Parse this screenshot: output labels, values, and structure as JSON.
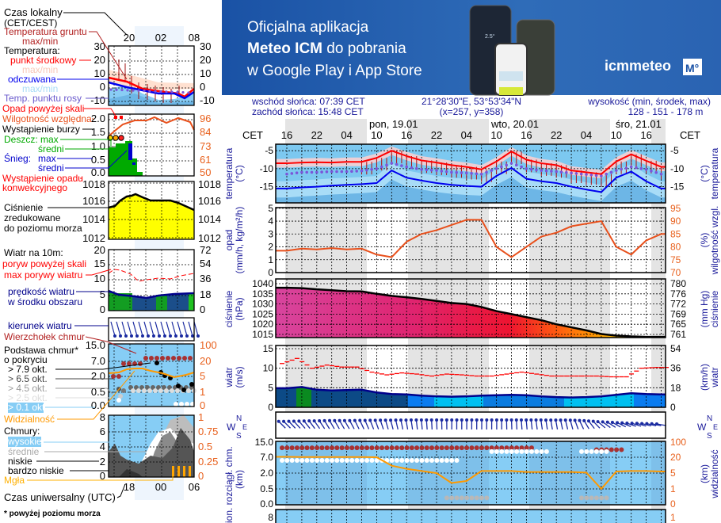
{
  "banner": {
    "line1": "Oficjalna aplikacja",
    "line2_bold": "Meteo ICM",
    "line2_rest": " do pobrania",
    "line3": "w Google Play i App Store",
    "logo_text": "icmmeteo",
    "logo_badge": "M°",
    "phone_temp": "2.5°",
    "background_color": "#1b55a8"
  },
  "legend": {
    "local_time": "Czas lokalny",
    "local_time_zone": "(CET/CEST)",
    "top_hours": [
      "20",
      "02",
      "08"
    ],
    "ground_temp": "Temperatura gruntu",
    "ground_temp_sub": "max/min",
    "temperature": "Temperatura:",
    "mid_point": "punkt środkowy",
    "mid_maxmin": "max/min",
    "felt": "odczuwana",
    "felt_maxmin": "max/min",
    "dew_point": "Temp. punktu rosy",
    "temp_ticks": [
      "30",
      "20",
      "10",
      "0",
      "-10"
    ],
    "precip_over": "Opad powyżej skali",
    "humidity": "Wilgotność względna",
    "storm": "Wystąpienie burzy",
    "rain_max": "Deszcz: max",
    "rain_avg": "średni",
    "snow": "Śnieg:",
    "snow_max": "max",
    "snow_avg": "średni",
    "convective": "Wystąpienie opadu",
    "convective2": "konwekcyjnego",
    "precip_ticks": [
      "2.0",
      "1.5",
      "1.0",
      "0.5",
      "0.0"
    ],
    "humidity_ticks": [
      "96",
      "84",
      "73",
      "61",
      "50"
    ],
    "pressure1": "Ciśnienie",
    "pressure2": "zredukowane",
    "pressure3": "do poziomu morza",
    "pressure_ticks": [
      "1018",
      "1016",
      "1014",
      "1012"
    ],
    "wind10": "Wiatr na 10m:",
    "gust_over": "poryw powyżej skali",
    "gust_max": "max porywy wiatru",
    "wind_speed1": "prędkość wiatru",
    "wind_speed2": "w środku obszaru",
    "wind_ticks": [
      "20",
      "15",
      "10",
      "5",
      "0"
    ],
    "wind_kmh_ticks": [
      "72",
      "54",
      "36",
      "18",
      "0"
    ],
    "wind_dir": "kierunek wiatru",
    "cloud_top": "Wierzchołek chmur",
    "cloud_base1": "Podstawa chmur*",
    "cloud_base2": "o pokryciu",
    "okt": [
      "> 7.9 okt.",
      "> 6.5 okt.",
      "> 4.5 okt.",
      "> 2.5 okt.",
      "> 0.1 okt."
    ],
    "cloud_ticks": [
      "15.0",
      "7.0",
      "2.0",
      "0.5",
      "0.0"
    ],
    "vis_ticks": [
      "100",
      "20",
      "5",
      "1",
      "0"
    ],
    "visibility": "Widzialność",
    "clouds": "Chmury:",
    "high": "wysokie",
    "mid": "średnie",
    "low": "niskie",
    "very_low": "bardzo niskie",
    "fog": "Mgła",
    "clouds_ticks": [
      "8",
      "6",
      "4",
      "2",
      "0"
    ],
    "clouds_right_ticks": [
      "1",
      "0.75",
      "0.5",
      "0.25",
      "0"
    ],
    "utc_hours": [
      "18",
      "00",
      "06"
    ],
    "utc": "Czas uniwersalny (UTC)",
    "footnote": "* powyżej poziomu morza"
  },
  "header": {
    "sunrise": "wschód słońca: 07:39 CET",
    "sunset": "zachód słońca: 15:48 CET",
    "coords": "21°28'30\"E, 53°53'34\"N",
    "grid": "(x=257,  y=358)",
    "elev_label": "wysokość (min, środek, max)",
    "elev_values": "128 - 151 - 178 m",
    "tz": "CET",
    "days": [
      "pon, 19.01",
      "wto, 20.01",
      "śro, 21.01"
    ],
    "hours": [
      "16",
      "22",
      "04",
      "10",
      "16",
      "22",
      "04",
      "10",
      "16",
      "22",
      "04",
      "10",
      "16"
    ]
  },
  "axes": {
    "temp_left": "temperatura",
    "temp_unit": "(°C)",
    "precip_left": "opad",
    "precip_unit": "(mm/h, kg/m²/h)",
    "hum_right": "wilgotność wzgl.",
    "hum_unit": "(%)",
    "pres_left": "ciśnienie",
    "pres_unit": "(hPa)",
    "pres_right_unit": "(mm Hg)",
    "wind_left": "wiatr",
    "wind_unit": "(m/s)",
    "wind_right_unit": "(km/h)",
    "compass": [
      "W",
      "S",
      "N",
      "E"
    ],
    "cloud_left": "pion. rozciągł. chm.",
    "cloud_unit": "(km)",
    "vis_right": "widzialność",
    "vis_unit": "(km)",
    "temp_ticks": [
      "-5",
      "-10",
      "-15"
    ],
    "precip_ticks": [
      "5",
      "4",
      "3",
      "2",
      "1",
      "0"
    ],
    "hum_ticks": [
      "95",
      "90",
      "85",
      "80",
      "75",
      "70"
    ],
    "pres_ticks": [
      "1040",
      "1035",
      "1030",
      "1025",
      "1020",
      "1015"
    ],
    "mmhg_ticks": [
      "780",
      "776",
      "772",
      "769",
      "765",
      "761"
    ],
    "wind_ticks": [
      "15",
      "10",
      "5",
      "0"
    ],
    "kmh_ticks": [
      "54",
      "36",
      "18",
      "0"
    ],
    "cloud_ticks": [
      "15.0",
      "7.0",
      "2.0",
      "0.5",
      "0.0"
    ],
    "vis_ticks": [
      "100",
      "20",
      "5",
      "1",
      "0"
    ],
    "clouds_tick": "8",
    "clouds_right_tick": "1"
  },
  "chart_data": {
    "type": "line",
    "times": [
      "18.01 16",
      "18.01 19",
      "18.01 22",
      "19.01 01",
      "19.01 04",
      "19.01 07",
      "19.01 10",
      "19.01 13",
      "19.01 16",
      "19.01 19",
      "19.01 22",
      "20.01 01",
      "20.01 04",
      "20.01 07",
      "20.01 10",
      "20.01 13",
      "20.01 16",
      "20.01 19",
      "20.01 22",
      "21.01 01",
      "21.01 04",
      "21.01 07",
      "21.01 10",
      "21.01 13",
      "21.01 16",
      "21.01 19"
    ],
    "temperature_c": [
      -8.5,
      -8.3,
      -8.2,
      -8.3,
      -8.1,
      -8.1,
      -7,
      -5,
      -6.5,
      -7.7,
      -8.3,
      -9,
      -9.5,
      -10.2,
      -8,
      -5.2,
      -7.5,
      -8.5,
      -9,
      -10.5,
      -11,
      -11.5,
      -8,
      -6,
      -7.8,
      -9.5
    ],
    "dew_point_c": [
      -11.5,
      -11,
      -11,
      -10.8,
      -10.8,
      -10.6,
      -10,
      -8.5,
      -9.5,
      -10.2,
      -10.5,
      -11,
      -11.2,
      -11.5,
      -10,
      -8.5,
      -10,
      -10.5,
      -10.8,
      -11.2,
      -11.6,
      -12,
      -10.5,
      -9.5,
      -10.2,
      -11.5
    ],
    "felt_temperature_c": [
      -15.5,
      -15.2,
      -15,
      -14.7,
      -14.5,
      -14.3,
      -14,
      -10.5,
      -12.5,
      -13.3,
      -14,
      -14.5,
      -14.8,
      -15,
      -12,
      -9.8,
      -12.8,
      -13.5,
      -14,
      -15,
      -15.8,
      -16.5,
      -12.5,
      -10.8,
      -13.5,
      -15.5
    ],
    "temp_ylim": [
      -19.5,
      -3.2
    ],
    "precip_mm_h": [
      0,
      0,
      0,
      0,
      0,
      0,
      0,
      0,
      0,
      0,
      0,
      0,
      0,
      0,
      0,
      0,
      0,
      0,
      0,
      0,
      0,
      0,
      0,
      0,
      0,
      0
    ],
    "humidity_pct": [
      78.5,
      79.3,
      79,
      79.5,
      79,
      79.3,
      77,
      76,
      82,
      85,
      86.5,
      88.5,
      90.5,
      90.5,
      80,
      76,
      80,
      84,
      85.5,
      88,
      89,
      90,
      80,
      77,
      82.5,
      85
    ],
    "pressure_hpa": [
      1038,
      1037.8,
      1037.2,
      1036.8,
      1036.3,
      1036.2,
      1035,
      1034,
      1033.3,
      1032.5,
      1031.5,
      1030.5,
      1030,
      1028.5,
      1026.5,
      1025,
      1023.5,
      1022,
      1020,
      1018.5,
      1017,
      1015.2,
      1014.4,
      1014,
      1013.8,
      1013.8
    ],
    "wind_gust_ms": [
      11.2,
      12.5,
      10,
      10.8,
      10.3,
      10.3,
      9,
      8.3,
      8.8,
      8.5,
      8,
      8.5,
      8.3,
      8,
      8,
      8.5,
      9,
      8.5,
      8,
      8,
      8,
      8,
      7.8,
      7.8,
      10,
      10.2
    ],
    "wind_speed_ms": [
      4.9,
      5.2,
      4.5,
      4.3,
      4.4,
      4.5,
      3.8,
      3.4,
      3.3,
      3,
      2.8,
      2.7,
      2.8,
      3,
      3.1,
      3.2,
      3.1,
      2.8,
      2.6,
      2.5,
      2.6,
      2.8,
      3.2,
      3.6,
      3.4,
      3.3
    ],
    "wind_dir_deg": [
      135,
      140,
      145,
      150,
      150,
      155,
      160,
      165,
      170,
      175,
      178,
      180,
      180,
      180,
      180,
      178,
      175,
      172,
      170,
      165,
      150,
      130,
      120,
      110,
      105,
      100
    ],
    "visibility_km": [
      22,
      21,
      21,
      21,
      21,
      21,
      20,
      12,
      9,
      7,
      5,
      2.5,
      3,
      7,
      7,
      7,
      6,
      6,
      6,
      6,
      5.5,
      1,
      6.5,
      7,
      7,
      6.5
    ],
    "cloud_top_km": [
      12,
      12,
      12,
      12,
      12,
      12,
      12,
      12,
      12,
      12,
      12,
      12,
      12,
      12,
      12,
      12,
      12,
      null,
      null,
      null,
      null,
      11,
      11,
      null,
      null,
      null
    ],
    "cloud_base_km": [
      6,
      6,
      6,
      6,
      6,
      6,
      6,
      6,
      6,
      6,
      6,
      6,
      null,
      null,
      10,
      10,
      10,
      10,
      null,
      null,
      10,
      10,
      null,
      null,
      null,
      null
    ],
    "low_cloud_km": [
      null,
      null,
      null,
      null,
      null,
      null,
      null,
      null,
      null,
      null,
      null,
      0.2,
      0.2,
      0.2,
      null,
      null,
      null,
      null,
      null,
      null,
      0.2,
      0.2,
      null,
      null,
      null,
      null
    ],
    "colors": {
      "temperature": "#ff0000",
      "felt": "#0000ee",
      "dew_point": "#7b55d9",
      "humidity": "#e8501c",
      "pressure": "#000000",
      "gust": "#ff0000",
      "wind": "#00008b",
      "visibility": "#ff9900",
      "cloud_top": "#a52a2a"
    }
  }
}
